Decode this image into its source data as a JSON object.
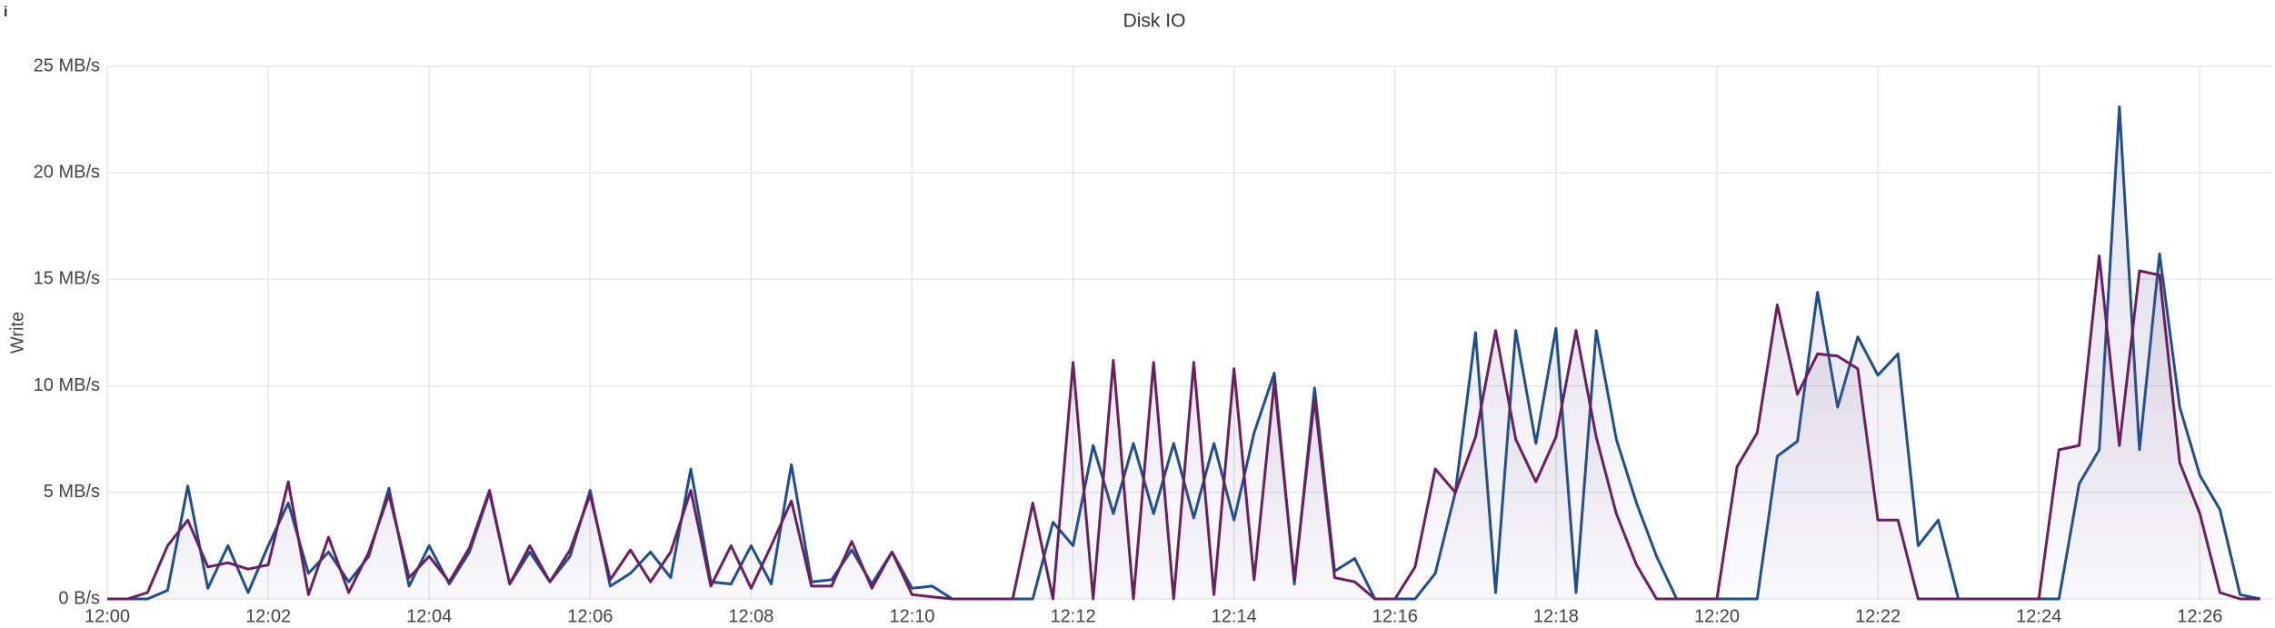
{
  "chart_data": {
    "type": "line",
    "title": "Disk IO",
    "y_label": "Write",
    "x": [
      0,
      0.25,
      0.5,
      0.75,
      1,
      1.25,
      1.5,
      1.75,
      2,
      2.25,
      2.5,
      2.75,
      3,
      3.25,
      3.5,
      3.75,
      4,
      4.25,
      4.5,
      4.75,
      5,
      5.25,
      5.5,
      5.75,
      6,
      6.25,
      6.5,
      6.75,
      7,
      7.25,
      7.5,
      7.75,
      8,
      8.25,
      8.5,
      8.75,
      9,
      9.25,
      9.5,
      9.75,
      10,
      10.25,
      10.5,
      10.75,
      11,
      11.25,
      11.5,
      11.75,
      12,
      12.25,
      12.5,
      12.75,
      13,
      13.25,
      13.5,
      13.75,
      14,
      14.25,
      14.5,
      14.75,
      15,
      15.25,
      15.5,
      15.75,
      16,
      16.25,
      16.5,
      16.75,
      17,
      17.25,
      17.5,
      17.75,
      18,
      18.25,
      18.5,
      18.75,
      19,
      19.25,
      19.5,
      19.75,
      20,
      20.25,
      20.5,
      20.75,
      21,
      21.25,
      21.5,
      21.75,
      22,
      22.25,
      22.5,
      22.75,
      23,
      23.25,
      23.5,
      23.75,
      24,
      24.25,
      24.5,
      24.75,
      25,
      25.25,
      25.5,
      25.75,
      26,
      26.25,
      26.5,
      26.75
    ],
    "series": [
      {
        "color": "#1f4e8c",
        "values": [
          0,
          0,
          0,
          0.4,
          5.3,
          0.5,
          2.5,
          0.3,
          2.5,
          4.5,
          1.2,
          2.2,
          0.8,
          2,
          5.2,
          0.6,
          2.5,
          0.7,
          2.2,
          5,
          0.7,
          2.2,
          0.8,
          2,
          5.1,
          0.6,
          1.2,
          2.2,
          1,
          6.1,
          0.8,
          0.7,
          2.5,
          0.7,
          6.3,
          0.8,
          0.9,
          2.3,
          0.7,
          2.2,
          0.5,
          0.6,
          0,
          0,
          0,
          0,
          0,
          3.6,
          2.5,
          7.2,
          4,
          7.3,
          4,
          7.3,
          3.8,
          7.3,
          3.7,
          7.8,
          10.6,
          0.7,
          9.9,
          1.3,
          1.9,
          0,
          0,
          0,
          1.2,
          5,
          12.5,
          0.3,
          12.6,
          7.3,
          12.7,
          0.3,
          12.6,
          7.5,
          4.5,
          2,
          0,
          0,
          0,
          0,
          0,
          6.7,
          7.4,
          14.4,
          9,
          12.3,
          10.5,
          11.5,
          2.5,
          3.7,
          0,
          0,
          0,
          0,
          0,
          0,
          5.4,
          7,
          23.1,
          7,
          16.2,
          9,
          5.8,
          4.2,
          0.2,
          0
        ]
      },
      {
        "color": "#6b1f5e",
        "values": [
          0,
          0,
          0.3,
          2.5,
          3.7,
          1.5,
          1.7,
          1.4,
          1.6,
          5.5,
          0.2,
          2.9,
          0.3,
          2.2,
          4.9,
          1,
          2,
          0.8,
          2.4,
          5.1,
          0.7,
          2.5,
          0.8,
          2.3,
          4.9,
          0.9,
          2.3,
          0.8,
          2.2,
          5.1,
          0.6,
          2.5,
          0.5,
          2.5,
          4.6,
          0.6,
          0.6,
          2.7,
          0.5,
          2.2,
          0.2,
          0.1,
          0,
          0,
          0,
          0,
          4.5,
          0,
          11.1,
          0,
          11.2,
          0,
          11.1,
          0,
          11.1,
          0.2,
          10.8,
          0.9,
          10.2,
          0.9,
          9.4,
          1,
          0.8,
          0,
          0,
          1.5,
          6.1,
          5,
          7.6,
          12.6,
          7.5,
          5.5,
          7.6,
          12.6,
          7.6,
          4,
          1.6,
          0,
          0,
          0,
          0,
          6.2,
          7.8,
          13.8,
          9.6,
          11.5,
          11.4,
          10.8,
          3.7,
          3.7,
          0,
          0,
          0,
          0,
          0,
          0,
          0,
          7,
          7.2,
          16.1,
          7.2,
          15.4,
          15.2,
          6.4,
          4,
          0.3,
          0,
          0
        ]
      }
    ],
    "xlim": [
      0,
      26.9
    ],
    "xticks": [
      {
        "value": 0,
        "label": "12:00"
      },
      {
        "value": 2,
        "label": "12:02"
      },
      {
        "value": 4,
        "label": "12:04"
      },
      {
        "value": 6,
        "label": "12:06"
      },
      {
        "value": 8,
        "label": "12:08"
      },
      {
        "value": 10,
        "label": "12:10"
      },
      {
        "value": 12,
        "label": "12:12"
      },
      {
        "value": 14,
        "label": "12:14"
      },
      {
        "value": 16,
        "label": "12:16"
      },
      {
        "value": 18,
        "label": "12:18"
      },
      {
        "value": 20,
        "label": "12:20"
      },
      {
        "value": 22,
        "label": "12:22"
      },
      {
        "value": 24,
        "label": "12:24"
      },
      {
        "value": 26,
        "label": "12:26"
      }
    ],
    "ylim": [
      0,
      25
    ],
    "yticks": [
      {
        "value": 0,
        "label": "0 B/s"
      },
      {
        "value": 5,
        "label": "5 MB/s"
      },
      {
        "value": 10,
        "label": "10 MB/s"
      },
      {
        "value": 15,
        "label": "15 MB/s"
      },
      {
        "value": 20,
        "label": "20 MB/s"
      },
      {
        "value": 25,
        "label": "25 MB/s"
      }
    ],
    "grid": true
  }
}
